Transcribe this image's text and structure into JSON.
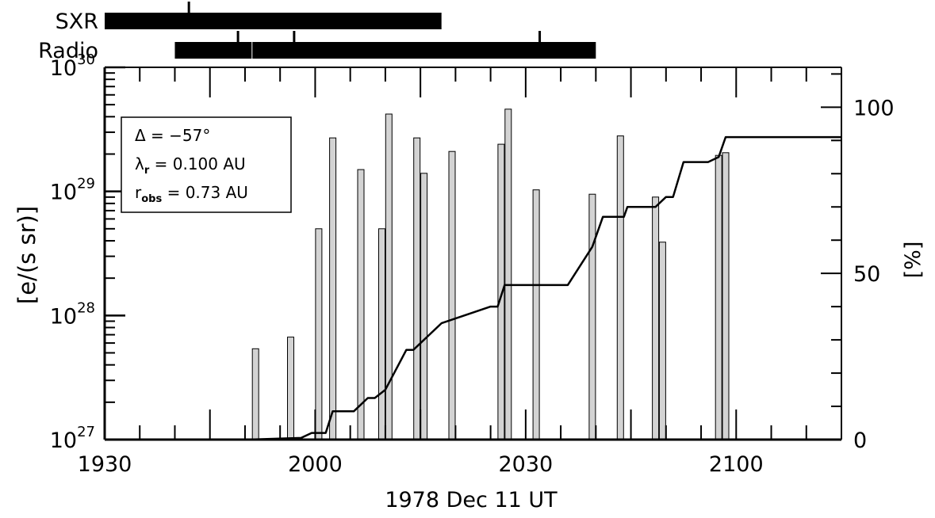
{
  "chart_data": {
    "type": "bar",
    "xlabel": "1978 Dec 11 UT",
    "x_tick_labels": [
      "1930",
      "2000",
      "2030",
      "2100"
    ],
    "x_range_minutes_after_1930": [
      0,
      105
    ],
    "ylabel_left": "[e/(s sr)]",
    "y_left_scale": "log",
    "y_left_ticks": [
      {
        "base": "10",
        "exp": "27"
      },
      {
        "base": "10",
        "exp": "28"
      },
      {
        "base": "10",
        "exp": "29"
      },
      {
        "base": "10",
        "exp": "30"
      }
    ],
    "ylim_left": [
      1e+27,
      1e+30
    ],
    "ylabel_right": "[%]",
    "y_right_ticks": [
      "0",
      "50",
      "100"
    ],
    "ylim_right": [
      0,
      112
    ],
    "bar_color": "#d3d3d3",
    "series": [
      {
        "type": "bar",
        "x_minutes_after_1930": [
          21.5,
          26.5,
          30.5,
          32.5,
          36.5,
          39.5,
          40.5,
          44.5,
          45.5,
          49.5,
          56.5,
          57.5,
          61.5,
          69.5,
          73.5,
          78.5,
          79.5,
          87.5,
          88.5
        ],
        "values": [
          5.4e+27,
          6.7e+27,
          5e+28,
          2.7e+29,
          1.5e+29,
          5e+28,
          4.2e+29,
          2.7e+29,
          1.4e+29,
          2.1e+29,
          2.4e+29,
          4.6e+29,
          1.03e+29,
          9.5e+28,
          2.8e+29,
          9e+28,
          3.9e+28,
          1.95e+29,
          2.05e+29
        ]
      },
      {
        "type": "step-line",
        "axis": "right",
        "x_minutes_after_1930": [
          20.5,
          28,
          29.5,
          31.5,
          32.5,
          35.5,
          37.5,
          38.5,
          40,
          43,
          44,
          48,
          55,
          56,
          57,
          60,
          66,
          69.5,
          71,
          74,
          74.5,
          78.5,
          80,
          81,
          82.5,
          86,
          87.5,
          88.5,
          105
        ],
        "values": [
          0,
          0.5,
          2,
          2,
          8.5,
          8.5,
          12.5,
          12.5,
          15,
          27,
          27,
          35,
          40,
          40,
          46.5,
          46.5,
          46.5,
          58,
          67,
          67,
          70,
          70,
          73,
          73,
          83.5,
          83.5,
          85,
          91,
          91
        ]
      }
    ],
    "annotation": {
      "delta_label": "Δ",
      "delta_value": "= −57°",
      "lambda_label": "λ",
      "lambda_sub": "r",
      "lambda_value": "= 0.100 AU",
      "r_label": "r",
      "r_sub": "obs",
      "r_value": "= 0.73 AU"
    },
    "timeline_bars": [
      {
        "label": "SXR",
        "start_min": 0,
        "end_min": 48,
        "tick_marks_min": [
          12
        ]
      },
      {
        "label": "Radio",
        "start_min": 10,
        "end_min": 70,
        "tick_marks_min": [
          19,
          27,
          62
        ],
        "break_min": 21
      }
    ]
  }
}
